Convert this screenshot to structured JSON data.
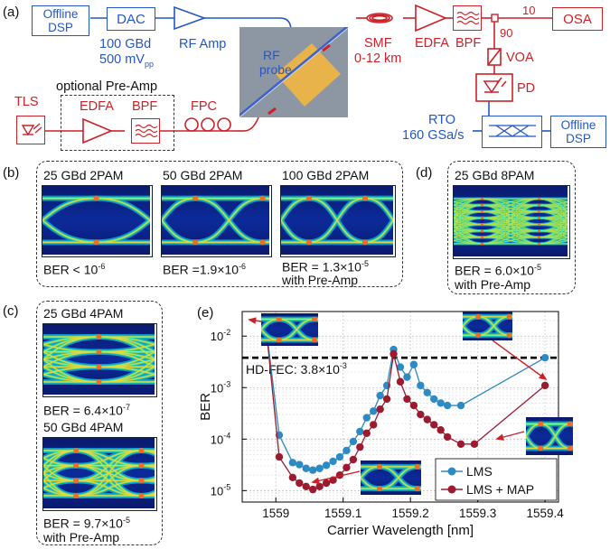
{
  "panel_labels": {
    "a": "(a)",
    "b": "(b)",
    "c": "(c)",
    "d": "(d)",
    "e": "(e)"
  },
  "setup": {
    "offline_dsp_tx": [
      "Offline",
      "DSP"
    ],
    "dac": "DAC",
    "dac_specs": [
      "100 GBd",
      "500 mV"
    ],
    "dac_specs_sub": "pp",
    "rf_amp": "RF Amp",
    "rf_probe": [
      "RF",
      "probe"
    ],
    "smf": [
      "SMF",
      "0-12 km"
    ],
    "edfa": "EDFA",
    "bpf": "BPF",
    "coupler_10": "10",
    "coupler_90": "90",
    "osa": "OSA",
    "voa": "VOA",
    "pd": "PD",
    "rto": [
      "RTO",
      "160 GSa/s"
    ],
    "offline_dsp_rx": [
      "Offline",
      "DSP"
    ],
    "tls": "TLS",
    "optional_preamp": "optional Pre-Amp",
    "pre_edfa": "EDFA",
    "pre_bpf": "BPF",
    "fpc": "FPC"
  },
  "panel_b": [
    {
      "title": "25 GBd 2PAM",
      "ber": "BER < 10",
      "ber_sup": "-6",
      "note": ""
    },
    {
      "title": "50 GBd 2PAM",
      "ber": "BER =1.9×10",
      "ber_sup": "-6",
      "note": ""
    },
    {
      "title": "100 GBd 2PAM",
      "ber": "BER = 1.3×10",
      "ber_sup": "-5",
      "note": "with Pre-Amp"
    }
  ],
  "panel_c": [
    {
      "title": "25 GBd 4PAM",
      "ber": "BER = 6.4×10",
      "ber_sup": "-7",
      "note": ""
    },
    {
      "title": "50 GBd 4PAM",
      "ber": "BER = 9.7×10",
      "ber_sup": "-5",
      "note": "with Pre-Amp"
    }
  ],
  "panel_d": {
    "title": "25 GBd 8PAM",
    "ber": "BER = 6.0×10",
    "ber_sup": "-5",
    "note": "with Pre-Amp"
  },
  "colors": {
    "setup_electrical": "#2457c5",
    "setup_optical": "#cc2128",
    "lms": "#2c8ac4",
    "lms_map": "#9b1b30",
    "chip": "#e7b34a"
  },
  "chart_data": {
    "type": "line",
    "xlabel": "Carrier Wavelength [nm]",
    "ylabel": "BER",
    "xlim": [
      1558.95,
      1559.42
    ],
    "ylim": [
      6e-06,
      0.03
    ],
    "yscale": "log",
    "xticks": [
      "1559",
      "1559.1",
      "1559.2",
      "1559.3",
      "1559.4"
    ],
    "yticks": [
      {
        "base": "10",
        "exp": "-2"
      },
      {
        "base": "10",
        "exp": "-3"
      },
      {
        "base": "10",
        "exp": "-4"
      },
      {
        "base": "10",
        "exp": "-5"
      }
    ],
    "grid": true,
    "threshold": {
      "label": "HD-FEC: 3.8×10",
      "label_sup": "-3",
      "value": 0.0038
    },
    "legend_position": "bottom-right",
    "series": [
      {
        "name": "LMS",
        "x": [
          1558.985,
          1559.005,
          1559.025,
          1559.035,
          1559.045,
          1559.055,
          1559.065,
          1559.075,
          1559.085,
          1559.095,
          1559.105,
          1559.115,
          1559.125,
          1559.135,
          1559.145,
          1559.155,
          1559.165,
          1559.175,
          1559.185,
          1559.195,
          1559.205,
          1559.215,
          1559.225,
          1559.235,
          1559.245,
          1559.255,
          1559.275,
          1559.4
        ],
        "y": [
          0.017,
          0.00012,
          3.5e-05,
          3.2e-05,
          2.7e-05,
          2.5e-05,
          2.7e-05,
          3.1e-05,
          3.7e-05,
          4.5e-05,
          6e-05,
          9e-05,
          0.00014,
          0.00026,
          0.00035,
          0.0007,
          0.0011,
          0.0055,
          0.0025,
          0.0016,
          0.0028,
          0.0011,
          0.0008,
          0.0006,
          0.0005,
          0.00045,
          0.00045,
          0.0038
        ]
      },
      {
        "name": "LMS + MAP",
        "x": [
          1558.985,
          1559.005,
          1559.025,
          1559.035,
          1559.045,
          1559.055,
          1559.065,
          1559.075,
          1559.085,
          1559.095,
          1559.105,
          1559.115,
          1559.125,
          1559.135,
          1559.145,
          1559.155,
          1559.165,
          1559.175,
          1559.185,
          1559.195,
          1559.205,
          1559.215,
          1559.225,
          1559.235,
          1559.245,
          1559.255,
          1559.275,
          1559.295,
          1559.4
        ],
        "y": [
          0.017,
          4.5e-05,
          1.8e-05,
          1.4e-05,
          1.2e-05,
          1.05e-05,
          1.2e-05,
          1.4e-05,
          1.6e-05,
          2e-05,
          2.8e-05,
          4e-05,
          7e-05,
          0.00013,
          0.00019,
          0.00038,
          0.0006,
          0.0045,
          0.0013,
          0.0006,
          0.00045,
          0.0003,
          0.00024,
          0.00019,
          0.00015,
          0.00011,
          8e-05,
          8e-05,
          0.0011
        ]
      }
    ]
  }
}
